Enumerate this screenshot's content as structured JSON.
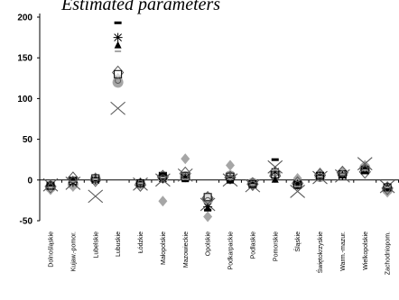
{
  "chart_data": {
    "type": "scatter",
    "title": "Estimated parameters",
    "xlabel": "",
    "ylabel": "",
    "ylim": [
      -50,
      200
    ],
    "yticks": [
      -50,
      0,
      50,
      100,
      150,
      200
    ],
    "grid": false,
    "categories": [
      "Dolnośląskie",
      "Kujaw.-pomor.",
      "Lubelskie",
      "Lubuskie",
      "Łódzkie",
      "Małopolskie",
      "Mazowieckie",
      "Opolskie",
      "Podkarpackie",
      "Podlaskie",
      "Pomorskie",
      "Śląskie",
      "Świętokrzyskie",
      "Warm.-mazur.",
      "Wielkopolskie",
      "Zachodniopom."
    ],
    "colors": {
      "black": "#000000",
      "grey": "#a6a6a6",
      "dark": "#595959",
      "axis": "#000000"
    },
    "series": [
      {
        "marker": "circle-grey",
        "values": [
          -9,
          -5,
          1,
          120,
          -5,
          3,
          4,
          -24,
          5,
          -4,
          8,
          -5,
          4,
          8,
          15,
          -12
        ]
      },
      {
        "marker": "diamond-grey",
        "values": [
          -12,
          -8,
          3,
          125,
          -3,
          -26,
          26,
          -45,
          18,
          -6,
          10,
          2,
          9,
          11,
          18,
          -15
        ]
      },
      {
        "marker": "diamond-open",
        "values": [
          -8,
          2,
          0,
          132,
          -6,
          4,
          8,
          -22,
          3,
          -5,
          5,
          -4,
          6,
          9,
          10,
          -10
        ]
      },
      {
        "marker": "square-open",
        "values": [
          -7,
          -1,
          2,
          130,
          -4,
          5,
          5,
          -21,
          4,
          -5,
          7,
          -6,
          5,
          7,
          12,
          -9
        ]
      },
      {
        "marker": "x-large",
        "values": [
          -6,
          -4,
          -20,
          88,
          -5,
          0,
          6,
          -30,
          0,
          -7,
          16,
          -14,
          3,
          5,
          20,
          -8
        ]
      },
      {
        "marker": "triangle-black",
        "values": [
          -8,
          0,
          1,
          165,
          -3,
          4,
          2,
          -35,
          -1,
          -6,
          0,
          -7,
          4,
          6,
          11,
          -10
        ]
      },
      {
        "marker": "star",
        "values": [
          -7,
          -3,
          0,
          175,
          -4,
          2,
          3,
          -33,
          2,
          -5,
          10,
          -5,
          5,
          6,
          13,
          -9
        ]
      },
      {
        "marker": "dash-black",
        "values": [
          -6,
          2,
          2,
          193,
          -3,
          7,
          -1,
          -37,
          -2,
          -5,
          25,
          -3,
          5,
          7,
          14,
          -11
        ]
      },
      {
        "marker": "dash-grey",
        "values": [
          -9,
          -2,
          1,
          158,
          -4,
          3,
          1,
          -28,
          1,
          -6,
          12,
          -8,
          4,
          7,
          12,
          -9
        ]
      },
      {
        "marker": "circle-dark",
        "values": [
          -8,
          0,
          1,
          122,
          -4,
          3,
          4,
          -25,
          3,
          -5,
          8,
          -5,
          4,
          8,
          14,
          -11
        ]
      }
    ]
  }
}
